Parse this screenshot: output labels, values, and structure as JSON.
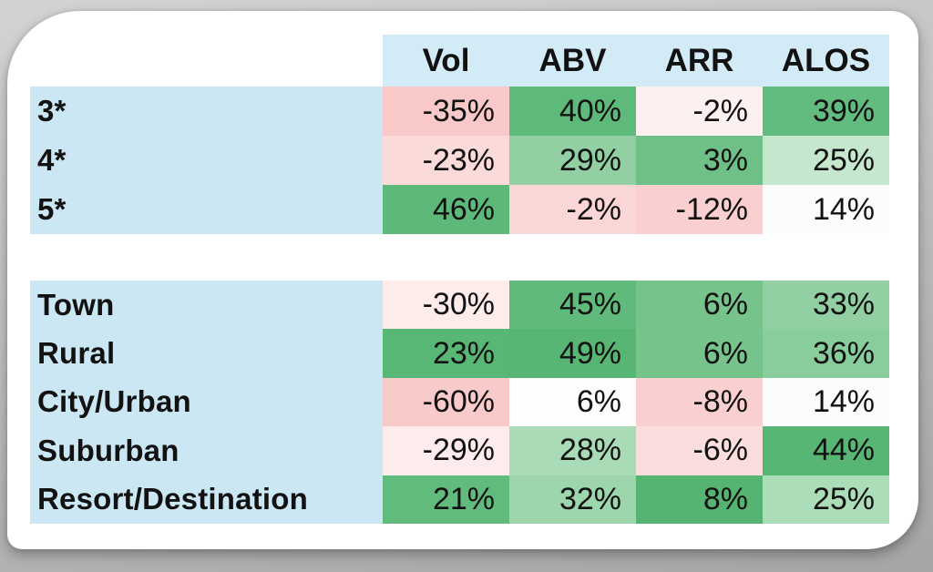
{
  "page": {
    "background_top": "#d3d3d3",
    "background_bottom": "#a5a5a5",
    "card_color": "#ffffff"
  },
  "palette": {
    "header_bg": "#d2ebf7",
    "label_bg": "#cbe7f3",
    "text_color": "#121212",
    "positive_strong": "#57b674",
    "negative_strong": "#f8c9c9",
    "neutral": "#fdfdfe"
  },
  "chart_data": [
    {
      "type": "heatmap",
      "name": "by-star-rating",
      "columns": [
        "Vol",
        "ABV",
        "ARR",
        "ALOS"
      ],
      "rows": [
        {
          "label": "3*",
          "cells": [
            {
              "text": "-35%",
              "value": -35,
              "bg": "#f9c9c9"
            },
            {
              "text": "40%",
              "value": 40,
              "bg": "#5eba7b"
            },
            {
              "text": "-2%",
              "value": -2,
              "bg": "#fdf0f1"
            },
            {
              "text": "39%",
              "value": 39,
              "bg": "#63bc7f"
            }
          ]
        },
        {
          "label": "4*",
          "cells": [
            {
              "text": "-23%",
              "value": -23,
              "bg": "#fbdada"
            },
            {
              "text": "29%",
              "value": 29,
              "bg": "#92d0a3"
            },
            {
              "text": "3%",
              "value": 3,
              "bg": "#6fc086"
            },
            {
              "text": "25%",
              "value": 25,
              "bg": "#c5e7ce"
            }
          ]
        },
        {
          "label": "5*",
          "cells": [
            {
              "text": "46%",
              "value": 46,
              "bg": "#5db97a"
            },
            {
              "text": "-2%",
              "value": -2,
              "bg": "#fbd6d6"
            },
            {
              "text": "-12%",
              "value": -12,
              "bg": "#f9cfcf"
            },
            {
              "text": "14%",
              "value": 14,
              "bg": "#fbfcfe"
            }
          ]
        }
      ]
    },
    {
      "type": "heatmap",
      "name": "by-location",
      "columns": [
        "Vol",
        "ABV",
        "ARR",
        "ALOS"
      ],
      "rows": [
        {
          "label": "Town",
          "cells": [
            {
              "text": "-30%",
              "value": -30,
              "bg": "#fdecea"
            },
            {
              "text": "45%",
              "value": 45,
              "bg": "#5fba7c"
            },
            {
              "text": "6%",
              "value": 6,
              "bg": "#76c38c"
            },
            {
              "text": "33%",
              "value": 33,
              "bg": "#92d0a3"
            }
          ]
        },
        {
          "label": "Rural",
          "cells": [
            {
              "text": "23%",
              "value": 23,
              "bg": "#59b776"
            },
            {
              "text": "49%",
              "value": 49,
              "bg": "#57b674"
            },
            {
              "text": "6%",
              "value": 6,
              "bg": "#76c38c"
            },
            {
              "text": "36%",
              "value": 36,
              "bg": "#8acd9c"
            }
          ]
        },
        {
          "label": "City/Urban",
          "cells": [
            {
              "text": "-60%",
              "value": -60,
              "bg": "#f8caca"
            },
            {
              "text": "6%",
              "value": 6,
              "bg": "#fdfefd"
            },
            {
              "text": "-8%",
              "value": -8,
              "bg": "#f9cfcf"
            },
            {
              "text": "14%",
              "value": 14,
              "bg": "#fbfcfd"
            }
          ]
        },
        {
          "label": "Suburban",
          "cells": [
            {
              "text": "-29%",
              "value": -29,
              "bg": "#fdeceb"
            },
            {
              "text": "28%",
              "value": 28,
              "bg": "#a9dbb6"
            },
            {
              "text": "-6%",
              "value": -6,
              "bg": "#fbdddd"
            },
            {
              "text": "44%",
              "value": 44,
              "bg": "#58b675"
            }
          ]
        },
        {
          "label": "Resort/Destination",
          "cells": [
            {
              "text": "21%",
              "value": 21,
              "bg": "#61bb7d"
            },
            {
              "text": "32%",
              "value": 32,
              "bg": "#9dd5ac"
            },
            {
              "text": "8%",
              "value": 8,
              "bg": "#55b471"
            },
            {
              "text": "25%",
              "value": 25,
              "bg": "#abddb8"
            }
          ]
        }
      ]
    }
  ]
}
